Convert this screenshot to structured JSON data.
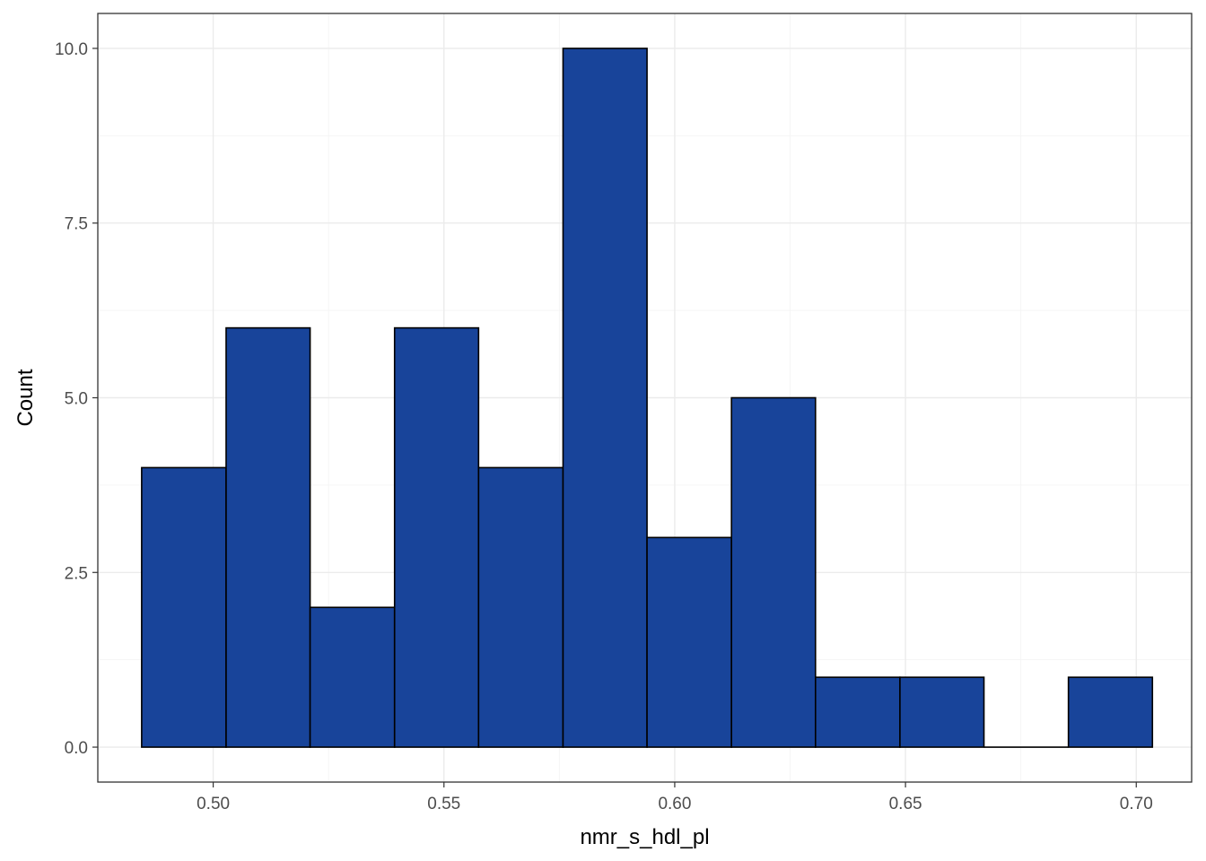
{
  "chart_data": {
    "type": "bar",
    "subtype": "histogram",
    "xlabel": "nmr_s_hdl_pl",
    "ylabel": "Count",
    "xlim": [
      0.475,
      0.712
    ],
    "ylim": [
      -0.5,
      10.5
    ],
    "x_ticks": [
      0.5,
      0.55,
      0.6,
      0.65,
      0.7
    ],
    "x_tick_labels": [
      "0.50",
      "0.55",
      "0.60",
      "0.65",
      "0.70"
    ],
    "y_ticks": [
      0.0,
      2.5,
      5.0,
      7.5,
      10.0
    ],
    "y_tick_labels": [
      "0.0",
      "2.5",
      "5.0",
      "7.5",
      "10.0"
    ],
    "bins": [
      {
        "start": 0.4845,
        "end": 0.5028,
        "count": 4
      },
      {
        "start": 0.5028,
        "end": 0.521,
        "count": 6
      },
      {
        "start": 0.521,
        "end": 0.5393,
        "count": 2
      },
      {
        "start": 0.5393,
        "end": 0.5575,
        "count": 6
      },
      {
        "start": 0.5575,
        "end": 0.5758,
        "count": 4
      },
      {
        "start": 0.5758,
        "end": 0.594,
        "count": 10
      },
      {
        "start": 0.594,
        "end": 0.6123,
        "count": 3
      },
      {
        "start": 0.6123,
        "end": 0.6305,
        "count": 5
      },
      {
        "start": 0.6305,
        "end": 0.6488,
        "count": 1
      },
      {
        "start": 0.6488,
        "end": 0.667,
        "count": 1
      },
      {
        "start": 0.667,
        "end": 0.6853,
        "count": 0
      },
      {
        "start": 0.6853,
        "end": 0.7035,
        "count": 1
      }
    ],
    "bar_fill": "#18449a",
    "bar_stroke": "#000000",
    "grid": true,
    "legend": "none"
  }
}
